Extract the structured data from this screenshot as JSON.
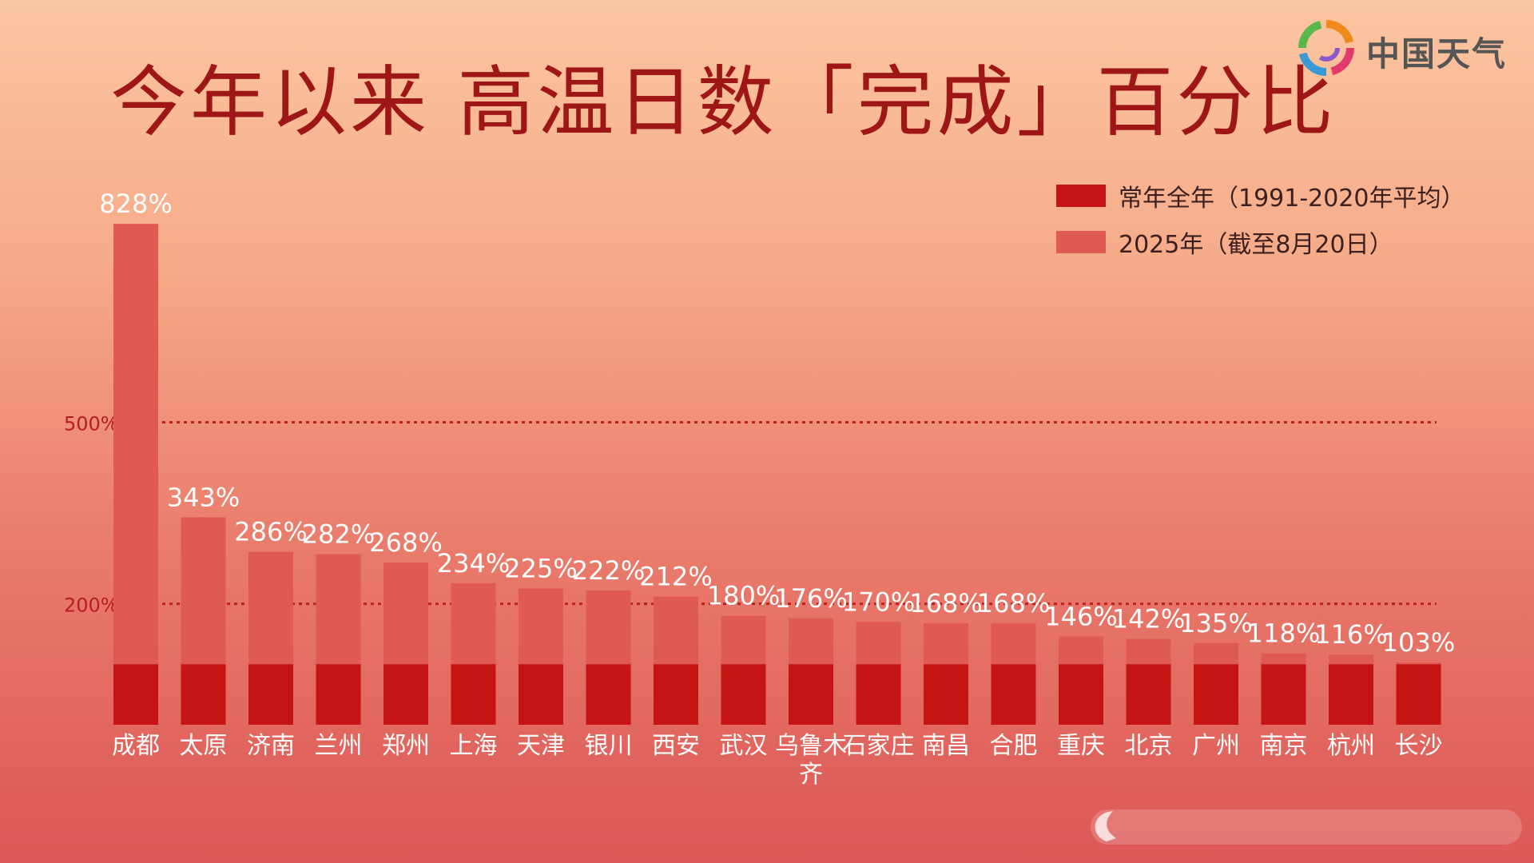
{
  "title": "今年以来 高温日数「完成」百分比",
  "logo": {
    "name": "中国天气",
    "icon": "swirl-logo-icon"
  },
  "colors": {
    "normal": "#c41414",
    "year2025": "#df5a50",
    "title": "#9e1616",
    "refline": "#c0201c",
    "label": "#ffffff",
    "axis_label": "#b42020"
  },
  "chart_data": {
    "type": "bar",
    "title": "今年以来 高温日数「完成」百分比",
    "categories": [
      "成都",
      "太原",
      "济南",
      "兰州",
      "郑州",
      "上海",
      "天津",
      "银川",
      "西安",
      "武汉",
      "乌鲁木齐",
      "石家庄",
      "南昌",
      "合肥",
      "重庆",
      "北京",
      "广州",
      "南京",
      "杭州",
      "长沙"
    ],
    "series": [
      {
        "name": "常年全年（1991-2020年平均）",
        "values": [
          100,
          100,
          100,
          100,
          100,
          100,
          100,
          100,
          100,
          100,
          100,
          100,
          100,
          100,
          100,
          100,
          100,
          100,
          100,
          100
        ]
      },
      {
        "name": "2025年（截至8月20日）",
        "values": [
          828,
          343,
          286,
          282,
          268,
          234,
          225,
          222,
          212,
          180,
          176,
          170,
          168,
          168,
          146,
          142,
          135,
          118,
          116,
          103
        ]
      }
    ],
    "value_labels": [
      "828%",
      "343%",
      "286%",
      "282%",
      "268%",
      "234%",
      "225%",
      "222%",
      "212%",
      "180%",
      "176%",
      "170%",
      "168%",
      "168%",
      "146%",
      "142%",
      "135%",
      "118%",
      "116%",
      "103%"
    ],
    "reference_lines": [
      {
        "value": 500,
        "label": "500%"
      },
      {
        "value": 200,
        "label": "200%"
      }
    ],
    "legend_position": "top-right",
    "grid": false
  }
}
